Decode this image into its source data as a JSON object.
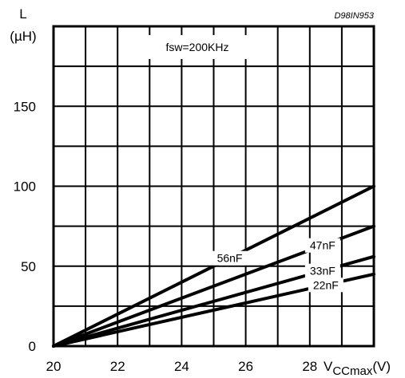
{
  "chart_data": {
    "type": "line",
    "watermark": "D98IN953",
    "ylabel_symbol": "L",
    "ylabel_unit": "(µH)",
    "xlabel_main": "V",
    "xlabel_sub": "CCmax",
    "xlabel_unit": "(V)",
    "annotation": "fsw=200KHz",
    "xlim": [
      20,
      30
    ],
    "ylim": [
      0,
      200
    ],
    "x_ticks": [
      20,
      22,
      24,
      26,
      28
    ],
    "y_ticks": [
      0,
      50,
      100,
      150
    ],
    "grid": true,
    "series": [
      {
        "name": "56nF",
        "x": [
          20,
          30
        ],
        "y": [
          0,
          100
        ]
      },
      {
        "name": "47nF",
        "x": [
          20,
          30
        ],
        "y": [
          0,
          75
        ]
      },
      {
        "name": "33nF",
        "x": [
          20,
          30
        ],
        "y": [
          0,
          56
        ]
      },
      {
        "name": "22nF",
        "x": [
          20,
          30
        ],
        "y": [
          0,
          45
        ]
      }
    ]
  }
}
